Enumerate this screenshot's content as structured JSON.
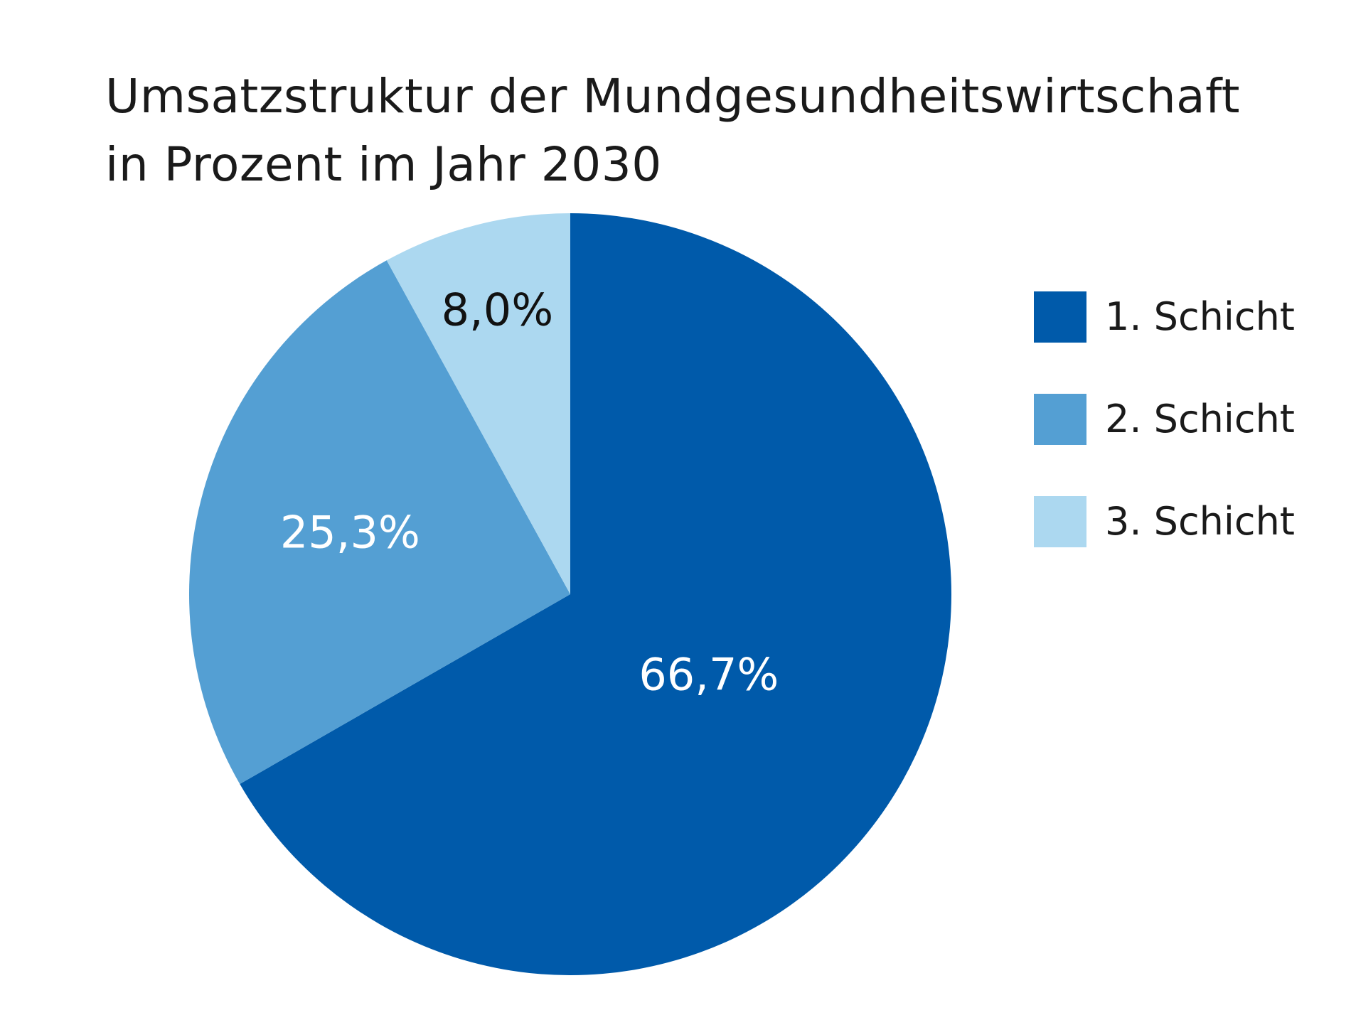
{
  "chart_data": {
    "type": "pie",
    "title_lines": [
      "Umsatzstruktur der Mundgesundheitswirtschaft",
      "in Prozent im Jahr 2030"
    ],
    "start": "12 o'clock",
    "direction": "clockwise",
    "slices": [
      {
        "name": "1. Schicht",
        "value": 66.7,
        "label": "66,7%",
        "color": "#005aaa",
        "label_color": "#ffffff"
      },
      {
        "name": "2. Schicht",
        "value": 25.3,
        "label": "25,3%",
        "color": "#549fd3",
        "label_color": "#ffffff"
      },
      {
        "name": "3. Schicht",
        "value": 8.0,
        "label": "8,0%",
        "color": "#acd8f0",
        "label_color": "#111111"
      }
    ],
    "legend": {
      "placement": "right",
      "items": [
        {
          "label": "1. Schicht",
          "color": "#005aaa"
        },
        {
          "label": "2. Schicht",
          "color": "#549fd3"
        },
        {
          "label": "3. Schicht",
          "color": "#acd8f0"
        }
      ]
    }
  }
}
